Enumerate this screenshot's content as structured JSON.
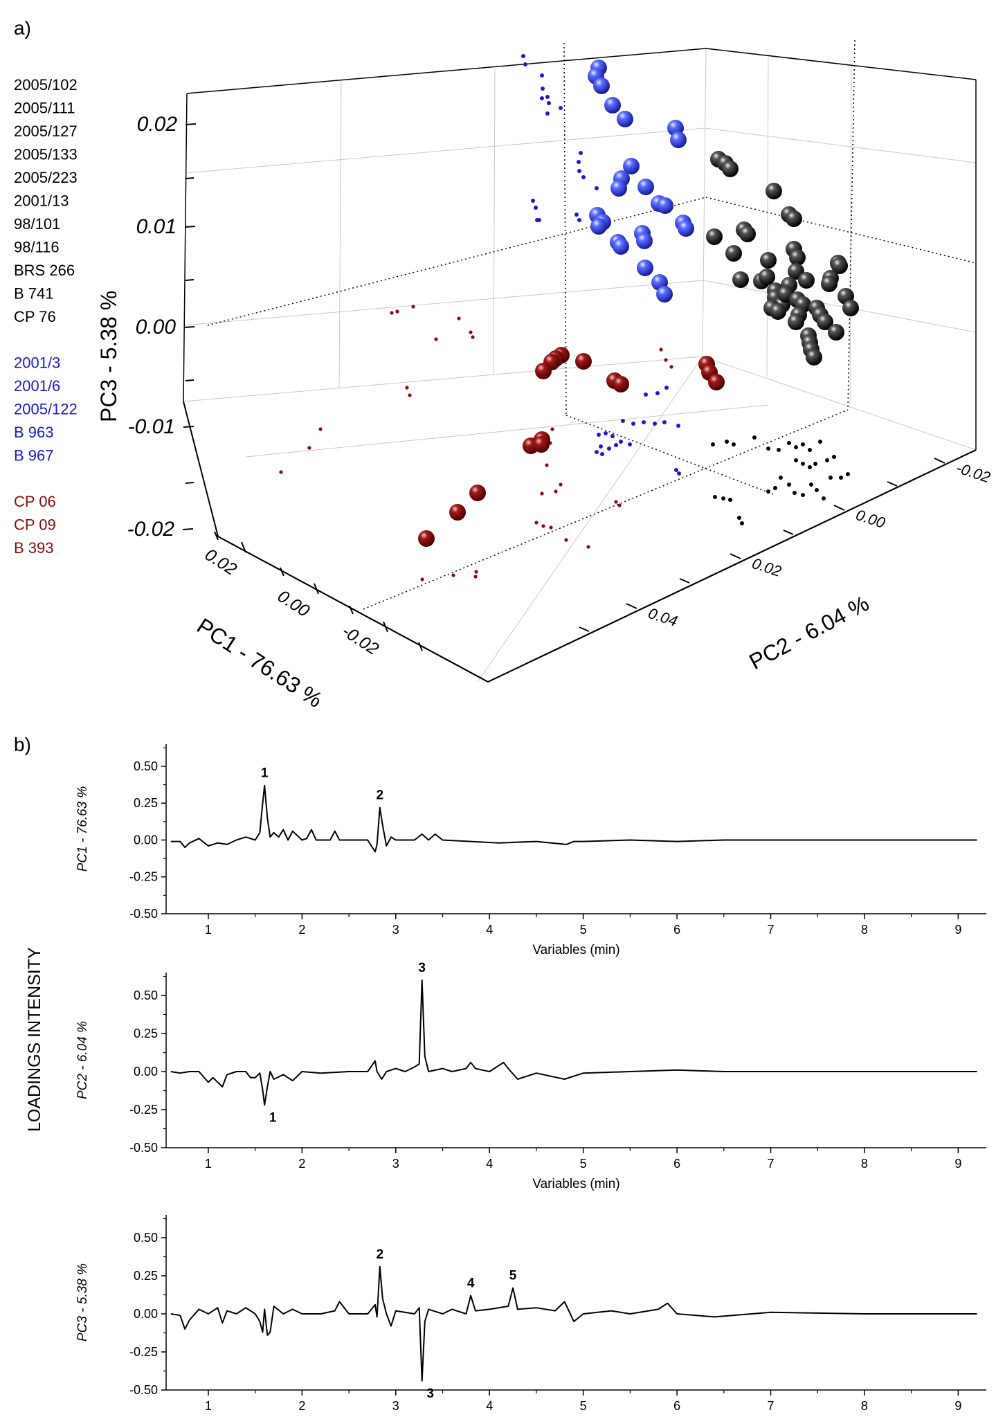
{
  "chart_data": [
    {
      "panel_label": "a)",
      "type": "scatter",
      "axes": {
        "x": {
          "label": "PC1 - 76.63 %",
          "ticks": [
            "0.02",
            "0.00",
            "-0.02"
          ]
        },
        "y": {
          "label": "PC2 - 6.04 %",
          "ticks": [
            "0.04",
            "0.02",
            "0.00",
            "-0.02"
          ]
        },
        "z": {
          "label": "PC3 - 5.38 %",
          "ticks": [
            "0.02",
            "0.01",
            "0.00",
            "-0.01",
            "-0.02"
          ],
          "range": [
            -0.02,
            0.02
          ]
        }
      },
      "legend_position": "left",
      "groups": [
        {
          "color": "#000000",
          "members": [
            "2005/102",
            "2005/111",
            "2005/127",
            "2005/133",
            "2005/223",
            "2001/13",
            "98/101",
            "98/116",
            "BRS 266",
            "B 741",
            "CP 76"
          ]
        },
        {
          "color": "#1a1acc",
          "members": [
            "2001/3",
            "2001/6",
            "2005/122",
            "B 963",
            "B 967"
          ]
        },
        {
          "color": "#8b0b0b",
          "members": [
            "CP 06",
            "CP 09",
            "B 393"
          ]
        }
      ]
    },
    {
      "panel_label": "b)",
      "type": "line",
      "shared_ylabel": "LOADINGS INTENSITY",
      "xlim": [
        0.55,
        9.3
      ],
      "ylim": [
        -0.5,
        0.65
      ],
      "x_ticks": [
        "1",
        "2",
        "3",
        "4",
        "5",
        "6",
        "7",
        "8",
        "9"
      ],
      "y_ticks": [
        "-0.50",
        "-0.25",
        "0.00",
        "0.25",
        "0.50"
      ],
      "line_color": "#000000",
      "panels": [
        {
          "ylabel": "PC1 - 76.63 %",
          "xlabel": "Variables (min)",
          "peaks": [
            {
              "label": "1",
              "x": 1.6,
              "y": 0.37
            },
            {
              "label": "2",
              "x": 2.83,
              "y": 0.22
            }
          ],
          "x": [
            0.6,
            0.7,
            0.75,
            0.8,
            0.9,
            1.0,
            1.1,
            1.2,
            1.3,
            1.4,
            1.5,
            1.55,
            1.58,
            1.6,
            1.63,
            1.66,
            1.7,
            1.75,
            1.8,
            1.85,
            1.9,
            2.0,
            2.05,
            2.1,
            2.15,
            2.3,
            2.35,
            2.4,
            2.5,
            2.7,
            2.78,
            2.8,
            2.83,
            2.86,
            2.9,
            2.95,
            3.0,
            3.2,
            3.28,
            3.35,
            3.42,
            3.5,
            3.8,
            4.1,
            4.5,
            4.82,
            4.9,
            5.0,
            5.5,
            6.0,
            6.5,
            7.0,
            7.5,
            8.0,
            8.5,
            9.0,
            9.2
          ],
          "y": [
            -0.01,
            -0.01,
            -0.05,
            -0.02,
            0.01,
            -0.04,
            -0.02,
            -0.03,
            0.0,
            0.02,
            0.0,
            0.05,
            0.25,
            0.37,
            0.15,
            0.02,
            0.05,
            0.02,
            0.07,
            0.0,
            0.06,
            0.0,
            0.01,
            0.07,
            0.0,
            0.0,
            0.06,
            0.0,
            0.0,
            0.0,
            -0.08,
            -0.03,
            0.22,
            0.1,
            -0.04,
            0.02,
            0.0,
            0.0,
            0.04,
            0.0,
            0.04,
            0.0,
            -0.01,
            -0.02,
            -0.01,
            -0.03,
            -0.01,
            -0.01,
            0.0,
            -0.01,
            0.0,
            0.0,
            0.0,
            0.0,
            0.0,
            0.0,
            0.0
          ]
        },
        {
          "ylabel": "PC2 - 6.04 %",
          "xlabel": "Variables (min)",
          "peaks": [
            {
              "label": "3",
              "x": 3.28,
              "y": 0.6
            },
            {
              "label": "1",
              "x": 1.6,
              "y": -0.22
            }
          ],
          "x": [
            0.6,
            0.7,
            0.8,
            0.9,
            1.0,
            1.05,
            1.15,
            1.2,
            1.3,
            1.4,
            1.45,
            1.5,
            1.55,
            1.58,
            1.6,
            1.63,
            1.66,
            1.7,
            1.8,
            1.9,
            2.0,
            2.2,
            2.5,
            2.7,
            2.78,
            2.8,
            2.85,
            2.9,
            3.0,
            3.1,
            3.2,
            3.25,
            3.28,
            3.31,
            3.35,
            3.5,
            3.6,
            3.75,
            3.8,
            3.85,
            4.0,
            4.15,
            4.2,
            4.3,
            4.5,
            4.8,
            5.0,
            5.5,
            6.0,
            6.5,
            7.0,
            8.0,
            9.0,
            9.2
          ],
          "y": [
            0.0,
            -0.01,
            0.0,
            0.0,
            -0.07,
            -0.04,
            -0.1,
            -0.02,
            0.0,
            0.0,
            -0.04,
            -0.04,
            -0.01,
            -0.12,
            -0.22,
            -0.1,
            0.0,
            -0.05,
            -0.02,
            -0.06,
            0.0,
            -0.01,
            0.0,
            0.0,
            0.07,
            0.0,
            -0.05,
            0.0,
            0.02,
            0.0,
            0.03,
            0.05,
            0.6,
            0.1,
            0.0,
            0.02,
            0.0,
            0.02,
            0.06,
            0.02,
            0.0,
            0.06,
            0.02,
            -0.05,
            -0.01,
            -0.05,
            -0.01,
            0.0,
            0.01,
            0.0,
            0.0,
            0.0,
            0.0,
            0.0
          ]
        },
        {
          "ylabel": "PC3 - 5.38 %",
          "xlabel": "",
          "peaks": [
            {
              "label": "2",
              "x": 2.83,
              "y": 0.31
            },
            {
              "label": "4",
              "x": 3.8,
              "y": 0.12
            },
            {
              "label": "5",
              "x": 4.25,
              "y": 0.17
            },
            {
              "label": "3",
              "x": 3.28,
              "y": -0.44
            }
          ],
          "x": [
            0.6,
            0.7,
            0.75,
            0.8,
            0.9,
            1.0,
            1.1,
            1.15,
            1.2,
            1.3,
            1.4,
            1.5,
            1.55,
            1.58,
            1.6,
            1.63,
            1.66,
            1.7,
            1.8,
            1.9,
            2.0,
            2.2,
            2.35,
            2.4,
            2.5,
            2.7,
            2.78,
            2.8,
            2.83,
            2.86,
            2.9,
            2.95,
            3.0,
            3.2,
            3.25,
            3.28,
            3.31,
            3.35,
            3.5,
            3.6,
            3.75,
            3.8,
            3.85,
            4.0,
            4.2,
            4.25,
            4.3,
            4.5,
            4.7,
            4.8,
            4.9,
            5.0,
            5.3,
            5.5,
            5.8,
            5.9,
            6.0,
            6.4,
            7.0,
            8.0,
            9.0,
            9.2
          ],
          "y": [
            0.0,
            -0.01,
            -0.1,
            -0.04,
            0.03,
            0.0,
            0.04,
            -0.06,
            0.02,
            0.0,
            0.04,
            0.0,
            -0.05,
            -0.12,
            0.03,
            -0.14,
            -0.12,
            0.05,
            0.0,
            0.03,
            0.0,
            0.0,
            0.02,
            0.08,
            0.0,
            0.0,
            0.06,
            -0.02,
            0.31,
            0.1,
            0.0,
            -0.08,
            0.02,
            0.0,
            0.04,
            -0.44,
            -0.05,
            0.03,
            0.0,
            0.03,
            0.0,
            0.12,
            0.02,
            0.03,
            0.05,
            0.17,
            0.03,
            0.04,
            0.02,
            0.08,
            -0.05,
            0.0,
            0.02,
            0.0,
            0.03,
            0.07,
            0.0,
            -0.02,
            0.01,
            0.0,
            0.0,
            0.0
          ]
        }
      ]
    }
  ]
}
